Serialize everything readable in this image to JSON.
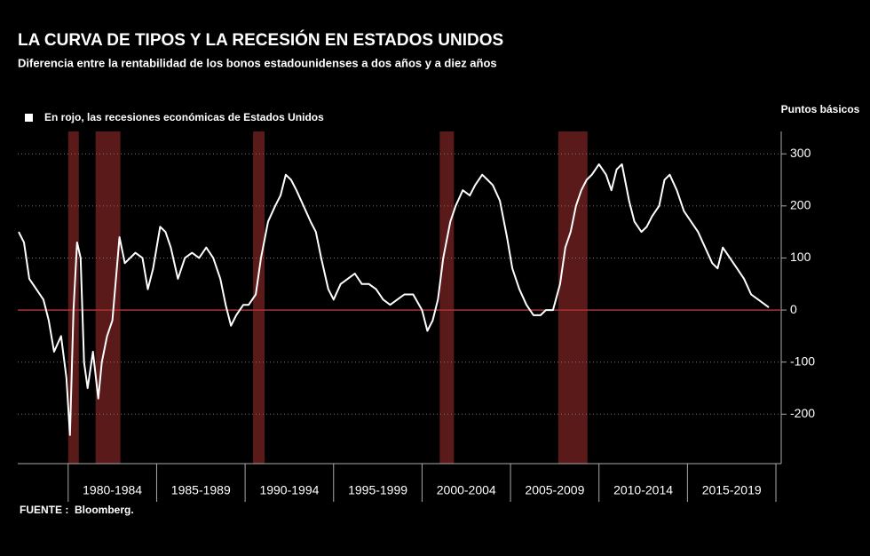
{
  "chart_data": {
    "type": "line",
    "title": "LA CURVA DE TIPOS Y LA RECESIÓN EN ESTADOS UNIDOS",
    "subtitle": "Diferencia entre la rentabilidad de los bonos estadounidenses a dos años y a diez años",
    "legend_note": "En rojo, las recesiones económicas de Estados Unidos",
    "y_axis_label": "Puntos básicos",
    "source": "FUENTE :  Bloomberg.",
    "xlim": [
      1977.15,
      2020.3
    ],
    "ylim": [
      -295,
      343
    ],
    "yticks": [
      -200,
      -100,
      0,
      100,
      200,
      300
    ],
    "xticks": [
      1980,
      1985,
      1990,
      1995,
      2000,
      2005,
      2010,
      2015,
      2020
    ],
    "period_labels": [
      "1980-1984",
      "1985-1989",
      "1990-1994",
      "1995-1999",
      "2000-2004",
      "2005-2009",
      "2010-2014",
      "2015-2019"
    ],
    "grid": true,
    "recessions": [
      [
        1980.0,
        1980.6
      ],
      [
        1981.55,
        1982.95
      ],
      [
        1990.45,
        1991.1
      ],
      [
        2001.0,
        2001.8
      ],
      [
        2007.7,
        2009.35
      ]
    ],
    "recession_color": "#6b1f1f",
    "zero_line_color": "#a33",
    "x": [
      1977.2,
      1977.5,
      1977.8,
      1978.2,
      1978.6,
      1978.9,
      1979.2,
      1979.6,
      1979.9,
      1980.1,
      1980.3,
      1980.5,
      1980.7,
      1980.9,
      1981.1,
      1981.4,
      1981.7,
      1981.9,
      1982.2,
      1982.5,
      1982.7,
      1982.9,
      1983.2,
      1983.5,
      1983.8,
      1984.2,
      1984.5,
      1984.8,
      1985.2,
      1985.5,
      1985.8,
      1986.2,
      1986.6,
      1987.0,
      1987.4,
      1987.8,
      1988.2,
      1988.6,
      1988.9,
      1989.2,
      1989.5,
      1989.9,
      1990.2,
      1990.6,
      1990.9,
      1991.3,
      1991.7,
      1992.0,
      1992.3,
      1992.6,
      1992.9,
      1993.3,
      1993.7,
      1994.0,
      1994.3,
      1994.7,
      1995.0,
      1995.4,
      1995.8,
      1996.2,
      1996.6,
      1997.0,
      1997.4,
      1997.8,
      1998.2,
      1998.6,
      1999.0,
      1999.5,
      2000.0,
      2000.3,
      2000.6,
      2000.9,
      2001.2,
      2001.6,
      2001.9,
      2002.3,
      2002.7,
      2003.0,
      2003.4,
      2003.7,
      2004.0,
      2004.4,
      2004.8,
      2005.1,
      2005.5,
      2005.9,
      2006.3,
      2006.7,
      2007.0,
      2007.4,
      2007.8,
      2008.1,
      2008.4,
      2008.7,
      2009.0,
      2009.3,
      2009.6,
      2010.0,
      2010.4,
      2010.7,
      2011.0,
      2011.3,
      2011.7,
      2012.0,
      2012.4,
      2012.7,
      2013.0,
      2013.4,
      2013.7,
      2014.0,
      2014.4,
      2014.8,
      2015.2,
      2015.6,
      2016.0,
      2016.4,
      2016.7,
      2017.0,
      2017.4,
      2017.8,
      2018.2,
      2018.6,
      2019.0,
      2019.4,
      2019.6
    ],
    "series": [
      {
        "color": "#ffffff",
        "values": [
          150,
          130,
          60,
          40,
          20,
          -20,
          -80,
          -50,
          -130,
          -240,
          0,
          130,
          100,
          -100,
          -150,
          -80,
          -170,
          -100,
          -50,
          -20,
          60,
          140,
          90,
          100,
          110,
          100,
          40,
          80,
          160,
          150,
          120,
          60,
          100,
          110,
          100,
          120,
          100,
          60,
          10,
          -30,
          -10,
          10,
          10,
          30,
          100,
          170,
          200,
          220,
          260,
          250,
          230,
          200,
          170,
          150,
          100,
          40,
          20,
          50,
          60,
          70,
          50,
          50,
          40,
          20,
          10,
          20,
          30,
          30,
          0,
          -40,
          -20,
          20,
          100,
          170,
          200,
          230,
          220,
          240,
          260,
          250,
          240,
          210,
          140,
          80,
          40,
          10,
          -10,
          -10,
          0,
          0,
          50,
          120,
          150,
          200,
          230,
          250,
          260,
          280,
          260,
          230,
          270,
          280,
          210,
          170,
          150,
          160,
          180,
          200,
          250,
          260,
          230,
          190,
          170,
          150,
          120,
          90,
          80,
          120,
          100,
          80,
          60,
          30,
          20,
          10,
          5
        ]
      }
    ]
  }
}
